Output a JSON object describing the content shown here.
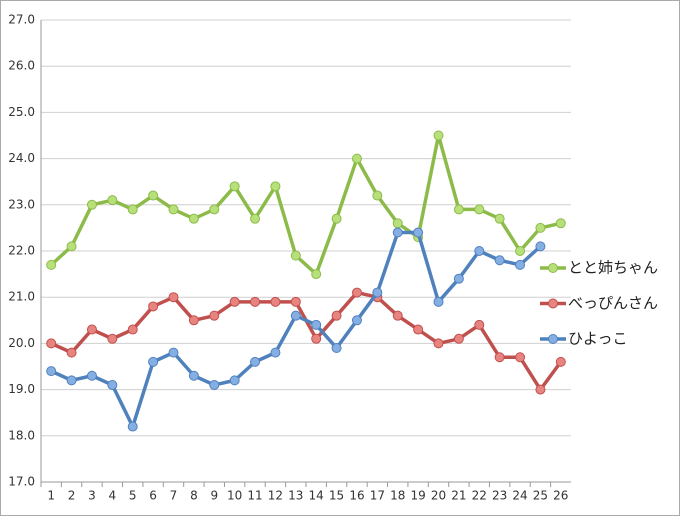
{
  "chart_data": {
    "type": "line",
    "categories": [
      "1",
      "2",
      "3",
      "4",
      "5",
      "6",
      "7",
      "8",
      "9",
      "10",
      "11",
      "12",
      "13",
      "14",
      "15",
      "16",
      "17",
      "18",
      "19",
      "20",
      "21",
      "22",
      "23",
      "24",
      "25",
      "26"
    ],
    "series": [
      {
        "name": "とと姉ちゃん",
        "color": "#8cbb4a",
        "marker_color": "#b7e07a",
        "values": [
          21.7,
          22.1,
          23.0,
          23.1,
          22.9,
          23.2,
          22.9,
          22.7,
          22.9,
          23.4,
          22.7,
          23.4,
          21.9,
          21.5,
          22.7,
          24.0,
          23.2,
          22.6,
          22.3,
          24.5,
          22.9,
          22.9,
          22.7,
          22.0,
          22.5,
          22.6
        ]
      },
      {
        "name": "べっぴんさん",
        "color": "#c0504d",
        "marker_color": "#e88480",
        "values": [
          20.0,
          19.8,
          20.3,
          20.1,
          20.3,
          20.8,
          21.0,
          20.5,
          20.6,
          20.9,
          20.9,
          20.9,
          20.9,
          20.1,
          20.6,
          21.1,
          21.0,
          20.6,
          20.3,
          20.0,
          20.1,
          20.4,
          19.7,
          19.7,
          19.0,
          19.6
        ]
      },
      {
        "name": "ひよっこ",
        "color": "#4f81bd",
        "marker_color": "#85aee3",
        "values": [
          19.4,
          19.2,
          19.3,
          19.1,
          18.2,
          19.6,
          19.8,
          19.3,
          19.1,
          19.2,
          19.6,
          19.8,
          20.6,
          20.4,
          19.9,
          20.5,
          21.1,
          22.4,
          22.4,
          20.9,
          21.4,
          22.0,
          21.8,
          21.7,
          22.1,
          null
        ]
      }
    ],
    "ylim": [
      17,
      27
    ],
    "yticks": [
      {
        "value": 17,
        "label": "17.0"
      },
      {
        "value": 18,
        "label": "18.0"
      },
      {
        "value": 19,
        "label": "19.0"
      },
      {
        "value": 20,
        "label": "20.0"
      },
      {
        "value": 21,
        "label": "21.0"
      },
      {
        "value": 22,
        "label": "22.0"
      },
      {
        "value": 23,
        "label": "23.0"
      },
      {
        "value": 24,
        "label": "24.0"
      },
      {
        "value": 25,
        "label": "25.0"
      },
      {
        "value": 26,
        "label": "26.0"
      },
      {
        "value": 27,
        "label": "27.0"
      }
    ],
    "grid": true
  }
}
